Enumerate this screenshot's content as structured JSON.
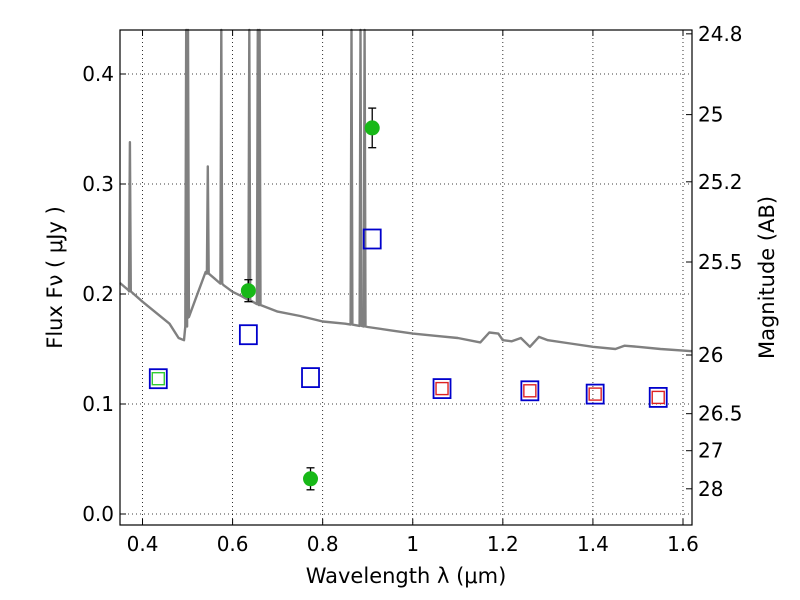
{
  "chart_data": {
    "type": "scatter",
    "xlabel": "Wavelength  λ (μm)",
    "ylabel": "Flux  Fν  ( μJy )",
    "y2label": "Magnitude (AB)",
    "xlim": [
      0.35,
      1.62
    ],
    "ylim": [
      -0.01,
      0.44
    ],
    "xticks": [
      {
        "v": 0.4,
        "label": "0.4"
      },
      {
        "v": 0.6,
        "label": "0.6"
      },
      {
        "v": 0.8,
        "label": "0.8"
      },
      {
        "v": 1.0,
        "label": "1"
      },
      {
        "v": 1.2,
        "label": "1.2"
      },
      {
        "v": 1.4,
        "label": "1.4"
      },
      {
        "v": 1.6,
        "label": "1.6"
      }
    ],
    "yticks": [
      {
        "v": 0.0,
        "label": "0.0"
      },
      {
        "v": 0.1,
        "label": "0.1"
      },
      {
        "v": 0.2,
        "label": "0.2"
      },
      {
        "v": 0.3,
        "label": "0.3"
      },
      {
        "v": 0.4,
        "label": "0.4"
      }
    ],
    "mag_ticks": [
      "24.8",
      "25",
      "25.2",
      "25.5",
      "26",
      "26.5",
      "27",
      "28"
    ],
    "grid": true,
    "colors": {
      "sed": "#808080",
      "observed": "#17b817",
      "model_blue": "#0000cc",
      "model_red": "#dd2222",
      "model_green": "#33cc33"
    },
    "sed_continuum": [
      [
        0.35,
        0.21
      ],
      [
        0.37,
        0.203
      ],
      [
        0.4,
        0.193
      ],
      [
        0.43,
        0.183
      ],
      [
        0.46,
        0.173
      ],
      [
        0.48,
        0.16
      ],
      [
        0.492,
        0.158
      ],
      [
        0.5,
        0.178
      ],
      [
        0.52,
        0.198
      ],
      [
        0.54,
        0.22
      ],
      [
        0.56,
        0.214
      ],
      [
        0.58,
        0.208
      ],
      [
        0.6,
        0.202
      ],
      [
        0.62,
        0.198
      ],
      [
        0.64,
        0.194
      ],
      [
        0.66,
        0.19
      ],
      [
        0.7,
        0.184
      ],
      [
        0.75,
        0.18
      ],
      [
        0.8,
        0.175
      ],
      [
        0.85,
        0.173
      ],
      [
        0.9,
        0.17
      ],
      [
        0.95,
        0.167
      ],
      [
        1.0,
        0.164
      ],
      [
        1.05,
        0.162
      ],
      [
        1.1,
        0.16
      ],
      [
        1.15,
        0.156
      ],
      [
        1.17,
        0.165
      ],
      [
        1.19,
        0.164
      ],
      [
        1.2,
        0.158
      ],
      [
        1.22,
        0.157
      ],
      [
        1.24,
        0.16
      ],
      [
        1.26,
        0.152
      ],
      [
        1.28,
        0.161
      ],
      [
        1.3,
        0.158
      ],
      [
        1.35,
        0.155
      ],
      [
        1.4,
        0.152
      ],
      [
        1.45,
        0.15
      ],
      [
        1.47,
        0.153
      ],
      [
        1.5,
        0.152
      ],
      [
        1.55,
        0.15
      ],
      [
        1.62,
        0.148
      ]
    ],
    "sed_lines": [
      {
        "x": 0.372,
        "peak": 0.338
      },
      {
        "x": 0.497,
        "peak": 0.44
      },
      {
        "x": 0.501,
        "peak": 0.44
      },
      {
        "x": 0.545,
        "peak": 0.316
      },
      {
        "x": 0.575,
        "peak": 0.44
      },
      {
        "x": 0.637,
        "peak": 0.44
      },
      {
        "x": 0.656,
        "peak": 0.44
      },
      {
        "x": 0.66,
        "peak": 0.44
      },
      {
        "x": 0.864,
        "peak": 0.44
      },
      {
        "x": 0.884,
        "peak": 0.44
      },
      {
        "x": 0.893,
        "peak": 0.44
      }
    ],
    "series": [
      {
        "marker": "filled-circle",
        "color": "#17b817",
        "points": [
          {
            "x": 0.635,
            "y": 0.203,
            "err": 0.01
          },
          {
            "x": 0.773,
            "y": 0.032,
            "err": 0.01
          },
          {
            "x": 0.91,
            "y": 0.351,
            "err": 0.018
          }
        ]
      },
      {
        "marker": "open-square",
        "color": "#0000cc",
        "points": [
          {
            "x": 0.435,
            "y": 0.123
          },
          {
            "x": 0.635,
            "y": 0.163
          },
          {
            "x": 0.773,
            "y": 0.124
          },
          {
            "x": 0.91,
            "y": 0.25
          },
          {
            "x": 1.065,
            "y": 0.114
          },
          {
            "x": 1.26,
            "y": 0.112
          },
          {
            "x": 1.405,
            "y": 0.109
          },
          {
            "x": 1.545,
            "y": 0.106
          }
        ]
      },
      {
        "marker": "small-open-square",
        "color": "#dd2222",
        "points": [
          {
            "x": 1.065,
            "y": 0.114
          },
          {
            "x": 1.26,
            "y": 0.112
          },
          {
            "x": 1.405,
            "y": 0.109
          },
          {
            "x": 1.545,
            "y": 0.106
          }
        ]
      },
      {
        "marker": "small-open-square",
        "color": "#33cc33",
        "points": [
          {
            "x": 0.435,
            "y": 0.123
          }
        ]
      }
    ]
  }
}
